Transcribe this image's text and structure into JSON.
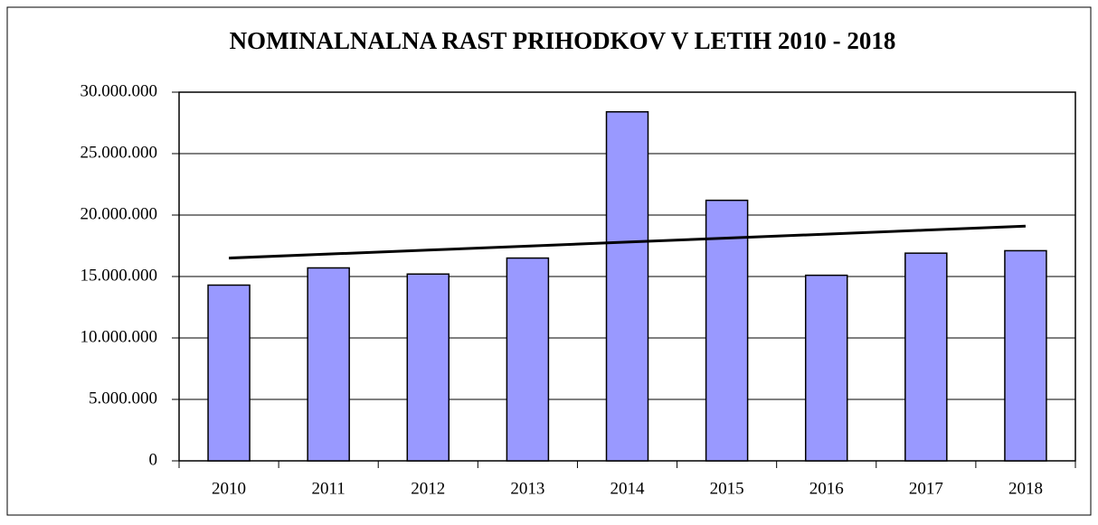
{
  "chart_data": {
    "type": "bar",
    "title": "NOMINALNALNA RAST PRIHODKOV V LETIH 2010 - 2018",
    "categories": [
      "2010",
      "2011",
      "2012",
      "2013",
      "2014",
      "2015",
      "2016",
      "2017",
      "2018"
    ],
    "values": [
      14300000,
      15700000,
      15200000,
      16500000,
      28400000,
      21200000,
      15100000,
      16900000,
      17100000
    ],
    "color": "#9999ff",
    "trend": {
      "color": "#000000",
      "values": [
        16500000,
        16825000,
        17150000,
        17475000,
        17800000,
        18125000,
        18450000,
        18775000,
        19100000
      ]
    },
    "ylim": [
      0,
      30000000
    ],
    "yticks": [
      0,
      {
        "value": 5000000,
        "label": "5.000.000"
      },
      {
        "value": 10000000,
        "label": "10.000.000"
      },
      {
        "value": 15000000,
        "label": "15.000.000"
      },
      {
        "value": 20000000,
        "label": "20.000.000"
      },
      {
        "value": 25000000,
        "label": "25.000.000"
      },
      {
        "value": 30000000,
        "label": "30.000.000"
      }
    ],
    "grid": true
  }
}
